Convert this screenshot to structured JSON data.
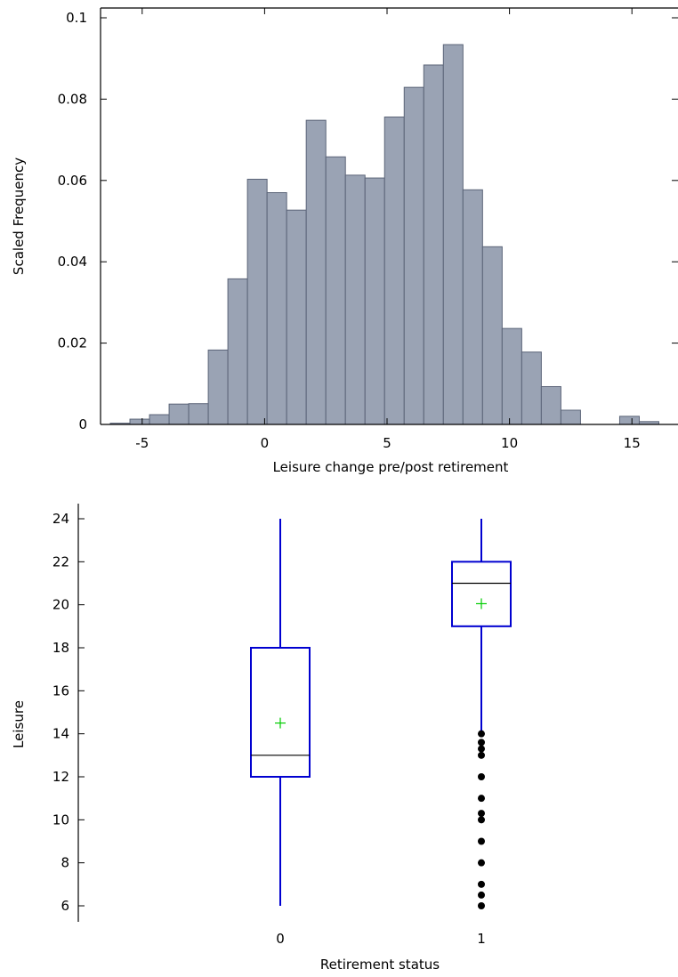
{
  "chart_data": [
    {
      "type": "bar",
      "subtype": "histogram",
      "xlabel": "Leisure change pre/post retirement",
      "ylabel": "Scaled Frequency",
      "xlim": [
        -6.7,
        16.7
      ],
      "ylim": [
        0,
        0.1
      ],
      "x_ticks": [
        -5,
        0,
        5,
        10,
        15
      ],
      "y_ticks": [
        0,
        0.02,
        0.04,
        0.06,
        0.08,
        0.1
      ],
      "y_tick_labels": [
        "0",
        "0.02",
        "0.04",
        "0.06",
        "0.08",
        "0.1"
      ],
      "bar_color": "#9aa3b4",
      "edge_color": "#5b6478",
      "bins": [
        {
          "x0": -6.3,
          "x1": -5.5,
          "value": 0.0003
        },
        {
          "x0": -5.5,
          "x1": -4.7,
          "value": 0.0013
        },
        {
          "x0": -4.7,
          "x1": -3.9,
          "value": 0.0024
        },
        {
          "x0": -3.9,
          "x1": -3.1,
          "value": 0.005
        },
        {
          "x0": -3.1,
          "x1": -2.3,
          "value": 0.0051
        },
        {
          "x0": -2.3,
          "x1": -1.5,
          "value": 0.0183
        },
        {
          "x0": -1.5,
          "x1": -0.7,
          "value": 0.0358
        },
        {
          "x0": -0.7,
          "x1": 0.1,
          "value": 0.0603
        },
        {
          "x0": 0.1,
          "x1": 0.9,
          "value": 0.057
        },
        {
          "x0": 0.9,
          "x1": 1.7,
          "value": 0.0527
        },
        {
          "x0": 1.7,
          "x1": 2.5,
          "value": 0.0748
        },
        {
          "x0": 2.5,
          "x1": 3.3,
          "value": 0.0658
        },
        {
          "x0": 3.3,
          "x1": 4.1,
          "value": 0.0613
        },
        {
          "x0": 4.1,
          "x1": 4.9,
          "value": 0.0606
        },
        {
          "x0": 4.9,
          "x1": 5.7,
          "value": 0.0756
        },
        {
          "x0": 5.7,
          "x1": 6.5,
          "value": 0.0829
        },
        {
          "x0": 6.5,
          "x1": 7.3,
          "value": 0.0884
        },
        {
          "x0": 7.3,
          "x1": 8.1,
          "value": 0.0934
        },
        {
          "x0": 8.1,
          "x1": 8.9,
          "value": 0.0577
        },
        {
          "x0": 8.9,
          "x1": 9.7,
          "value": 0.0437
        },
        {
          "x0": 9.7,
          "x1": 10.5,
          "value": 0.0236
        },
        {
          "x0": 10.5,
          "x1": 11.3,
          "value": 0.0178
        },
        {
          "x0": 11.3,
          "x1": 12.1,
          "value": 0.0093
        },
        {
          "x0": 12.1,
          "x1": 12.9,
          "value": 0.0035
        },
        {
          "x0": 14.5,
          "x1": 15.3,
          "value": 0.002
        },
        {
          "x0": 15.3,
          "x1": 16.1,
          "value": 0.0007
        }
      ]
    },
    {
      "type": "box",
      "xlabel": "Retirement status",
      "ylabel": "Leisure",
      "ylim": [
        5.3,
        24.7
      ],
      "y_ticks": [
        6,
        8,
        10,
        12,
        14,
        16,
        18,
        20,
        22,
        24
      ],
      "box_color": "#0000d0",
      "median_color": "#000000",
      "mean_color": "#00cc00",
      "outlier_color": "#000000",
      "groups": [
        {
          "label": "0",
          "whisker_low": 6,
          "q1": 12,
          "median": 13,
          "q3": 18,
          "whisker_high": 24,
          "mean": 14.5,
          "outliers": []
        },
        {
          "label": "1",
          "whisker_low": 14,
          "q1": 19,
          "median": 21,
          "q3": 22,
          "whisker_high": 24,
          "mean": 20.05,
          "outliers": [
            6,
            6.5,
            7,
            8,
            9,
            10,
            10.3,
            11,
            12,
            13,
            13.3,
            13.6,
            14
          ]
        }
      ]
    }
  ]
}
